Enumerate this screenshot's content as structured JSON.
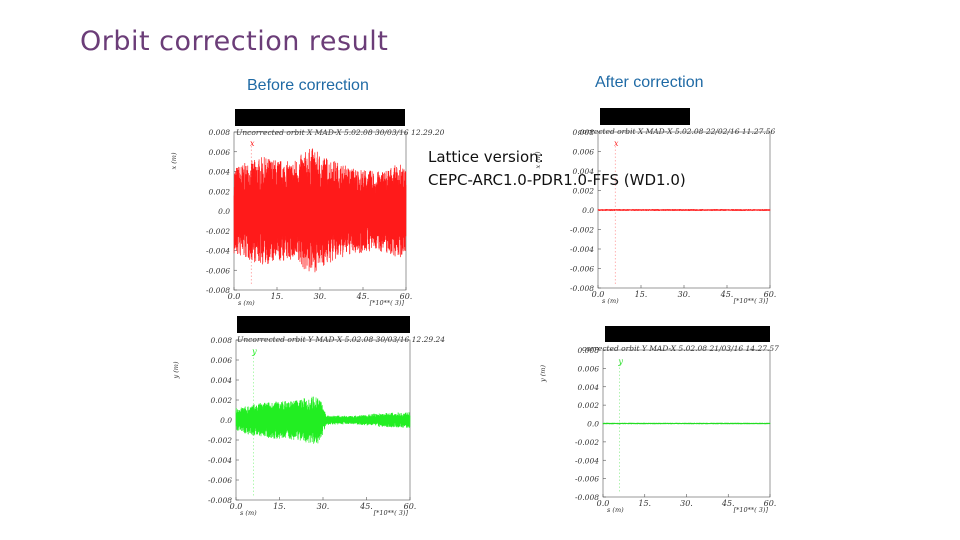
{
  "slide": {
    "title": "Orbit correction result",
    "before_label": "Before correction",
    "after_label": "After correction",
    "lattice_line1": "Lattice version:",
    "lattice_line2": "CEPC-ARC1.0-PDR1.0-FFS (WD1.0)"
  },
  "colors": {
    "before_x": "#ff1a1a",
    "before_y": "#22ee22",
    "after_x": "#ff2a2a",
    "after_y": "#22dd22"
  },
  "chart_data": [
    {
      "id": "before-x",
      "type": "line",
      "caption": "Uncorrected orbit X  MAD-X 5.02.08  30/03/16 12.29.20",
      "ylabel": "x (m)",
      "xlabel": "s (m)",
      "x_scale_label": "[*10**(  3)]",
      "xlim": [
        0,
        60
      ],
      "ylim": [
        -0.008,
        0.008
      ],
      "xticks": [
        "0.0",
        "15.",
        "30.",
        "45.",
        "60."
      ],
      "yticks": [
        {
          "value": 0.008,
          "label": "0.008"
        },
        {
          "value": 0.006,
          "label": "0.006"
        },
        {
          "value": 0.004,
          "label": "0.004"
        },
        {
          "value": 0.002,
          "label": "0.002"
        },
        {
          "value": 0.0,
          "label": "0.0"
        },
        {
          "value": -0.002,
          "label": "-0.002"
        },
        {
          "value": -0.004,
          "label": "-0.004"
        },
        {
          "value": -0.006,
          "label": "-0.006"
        },
        {
          "value": -0.008,
          "label": "-0.008"
        }
      ],
      "series_marker": "x",
      "envelope": [
        [
          0,
          0.0045
        ],
        [
          10,
          0.0055
        ],
        [
          20,
          0.005
        ],
        [
          27,
          0.0065
        ],
        [
          30,
          0.0058
        ],
        [
          40,
          0.0045
        ],
        [
          50,
          0.004
        ],
        [
          58,
          0.0048
        ],
        [
          60,
          0.004
        ]
      ]
    },
    {
      "id": "before-y",
      "type": "line",
      "caption": "Uncorrected orbit Y  MAD-X 5.02.08  30/03/16 12.29.24",
      "ylabel": "y (m)",
      "xlabel": "s (m)",
      "x_scale_label": "[*10**(  3)]",
      "xlim": [
        0,
        60
      ],
      "ylim": [
        -0.008,
        0.008
      ],
      "xticks": [
        "0.0",
        "15.",
        "30.",
        "45.",
        "60."
      ],
      "yticks": [
        {
          "value": 0.008,
          "label": "0.008"
        },
        {
          "value": 0.006,
          "label": "0.006"
        },
        {
          "value": 0.004,
          "label": "0.004"
        },
        {
          "value": 0.002,
          "label": "0.002"
        },
        {
          "value": 0.0,
          "label": "0.0"
        },
        {
          "value": -0.002,
          "label": "-0.002"
        },
        {
          "value": -0.004,
          "label": "-0.004"
        },
        {
          "value": -0.006,
          "label": "-0.006"
        },
        {
          "value": -0.008,
          "label": "-0.008"
        }
      ],
      "series_marker": "y",
      "envelope": [
        [
          0,
          0.0012
        ],
        [
          10,
          0.0018
        ],
        [
          20,
          0.002
        ],
        [
          28,
          0.0025
        ],
        [
          29.5,
          0.0018
        ],
        [
          31,
          0.0005
        ],
        [
          40,
          0.0004
        ],
        [
          50,
          0.0007
        ],
        [
          60,
          0.0008
        ]
      ]
    },
    {
      "id": "after-x",
      "type": "line",
      "caption": "corrected orbit X  MAD-X 5.02.08  22/02/16 11.27.56",
      "ylabel": "x (m)",
      "xlabel": "s (m)",
      "x_scale_label": "[*10**(  3)]",
      "xlim": [
        0,
        60
      ],
      "ylim": [
        -0.008,
        0.008
      ],
      "xticks": [
        "0.0",
        "15.",
        "30.",
        "45.",
        "60."
      ],
      "yticks": [
        {
          "value": 0.008,
          "label": "0.008"
        },
        {
          "value": 0.006,
          "label": "0.006"
        },
        {
          "value": 0.004,
          "label": "0.004"
        },
        {
          "value": 0.002,
          "label": "0.002"
        },
        {
          "value": 0.0,
          "label": "0.0"
        },
        {
          "value": -0.002,
          "label": "-0.002"
        },
        {
          "value": -0.004,
          "label": "-0.004"
        },
        {
          "value": -0.006,
          "label": "-0.006"
        },
        {
          "value": -0.008,
          "label": "-0.008"
        }
      ],
      "series_marker": "x",
      "envelope": [
        [
          0,
          0.0001
        ],
        [
          30,
          0.0001
        ],
        [
          60,
          0.0001
        ]
      ]
    },
    {
      "id": "after-y",
      "type": "line",
      "caption": "corrected orbit Y  MAD-X 5.02.08  21/03/16 14.27.57",
      "ylabel": "y (m)",
      "xlabel": "s (m)",
      "x_scale_label": "[*10**(  3)]",
      "xlim": [
        0,
        60
      ],
      "ylim": [
        -0.008,
        0.008
      ],
      "xticks": [
        "0.0",
        "15.",
        "30.",
        "45.",
        "60."
      ],
      "yticks": [
        {
          "value": 0.008,
          "label": "0.008"
        },
        {
          "value": 0.006,
          "label": "0.006"
        },
        {
          "value": 0.004,
          "label": "0.004"
        },
        {
          "value": 0.002,
          "label": "0.002"
        },
        {
          "value": 0.0,
          "label": "0.0"
        },
        {
          "value": -0.002,
          "label": "-0.002"
        },
        {
          "value": -0.004,
          "label": "-0.004"
        },
        {
          "value": -0.006,
          "label": "-0.006"
        },
        {
          "value": -0.008,
          "label": "-0.008"
        }
      ],
      "series_marker": "y",
      "envelope": [
        [
          0,
          8e-05
        ],
        [
          30,
          8e-05
        ],
        [
          60,
          8e-05
        ]
      ]
    }
  ]
}
